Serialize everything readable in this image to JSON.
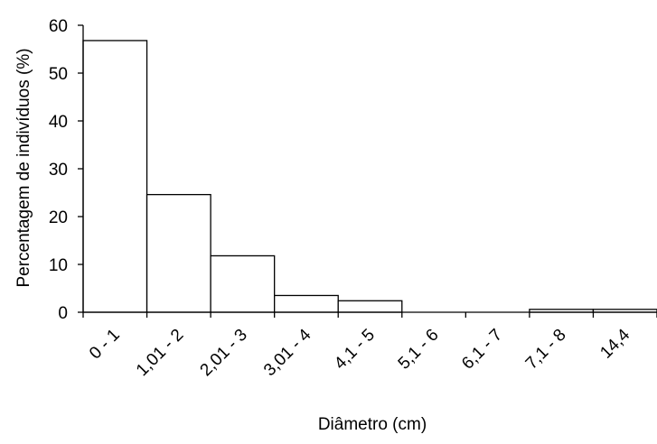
{
  "chart_data": {
    "type": "bar",
    "categories": [
      "0 - 1",
      "1,01 - 2",
      "2,01 - 3",
      "3,01 - 4",
      "4,1 - 5",
      "5,1 - 6",
      "6,1 - 7",
      "7,1 - 8",
      "14,4"
    ],
    "values": [
      56.8,
      24.6,
      11.8,
      3.5,
      2.4,
      0,
      0,
      0.6,
      0.6
    ],
    "title": "",
    "xlabel": "Diâmetro (cm)",
    "ylabel": "Percentagem de indivíduos (%)",
    "ylim": [
      0,
      60
    ],
    "yticks": [
      0,
      10,
      20,
      30,
      40,
      50,
      60
    ],
    "grid": false,
    "bar_fill": "#ffffff",
    "bar_stroke": "#000000"
  }
}
